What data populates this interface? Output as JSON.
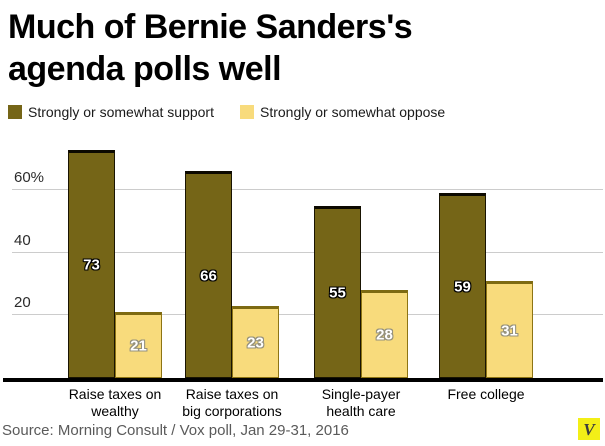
{
  "title": {
    "text": "Much of Bernie Sanders's agenda polls well",
    "lines": [
      "Much of Bernie Sanders's",
      "agenda polls well"
    ]
  },
  "legend": [
    {
      "label": "Strongly or somewhat support",
      "color": "#756517"
    },
    {
      "label": "Strongly or somewhat oppose",
      "color": "#f8db7c"
    }
  ],
  "chart_data": {
    "type": "bar",
    "title": "Much of Bernie Sanders's agenda polls well",
    "categories": [
      "Raise taxes on wealthy",
      "Raise taxes on big corporations",
      "Single-payer health care",
      "Free college"
    ],
    "category_lines": [
      [
        "Raise taxes on",
        "wealthy"
      ],
      [
        "Raise taxes on",
        "big corporations"
      ],
      [
        "Single-payer",
        "health care"
      ],
      [
        "Free college"
      ]
    ],
    "series": [
      {
        "name": "Strongly or somewhat support",
        "color": "#756517",
        "values": [
          73,
          66,
          55,
          59
        ]
      },
      {
        "name": "Strongly or somewhat oppose",
        "color": "#f8db7c",
        "values": [
          21,
          23,
          28,
          31
        ]
      }
    ],
    "xlabel": "",
    "ylabel": "",
    "ylim": [
      0,
      79
    ],
    "yticks": [
      {
        "value": 20,
        "label": "20"
      },
      {
        "value": 40,
        "label": "40"
      },
      {
        "value": 60,
        "label": "60%"
      }
    ],
    "grid": "horizontal",
    "legend_position": "top-left",
    "value_labels": "white with dark outline, centered in bars"
  },
  "source": {
    "text": "Source: Morning Consult / Vox poll, Jan 29-31, 2016"
  },
  "logo": {
    "letter": "V",
    "bg": "#f3ef17",
    "fg": "#3d3d3d"
  },
  "colors": {
    "support_bar": "#756517",
    "oppose_bar": "#f8db7c",
    "gridline": "#cccccc",
    "baseline": "#000000",
    "title_text": "#000000",
    "source_text": "#5a5a5a"
  }
}
